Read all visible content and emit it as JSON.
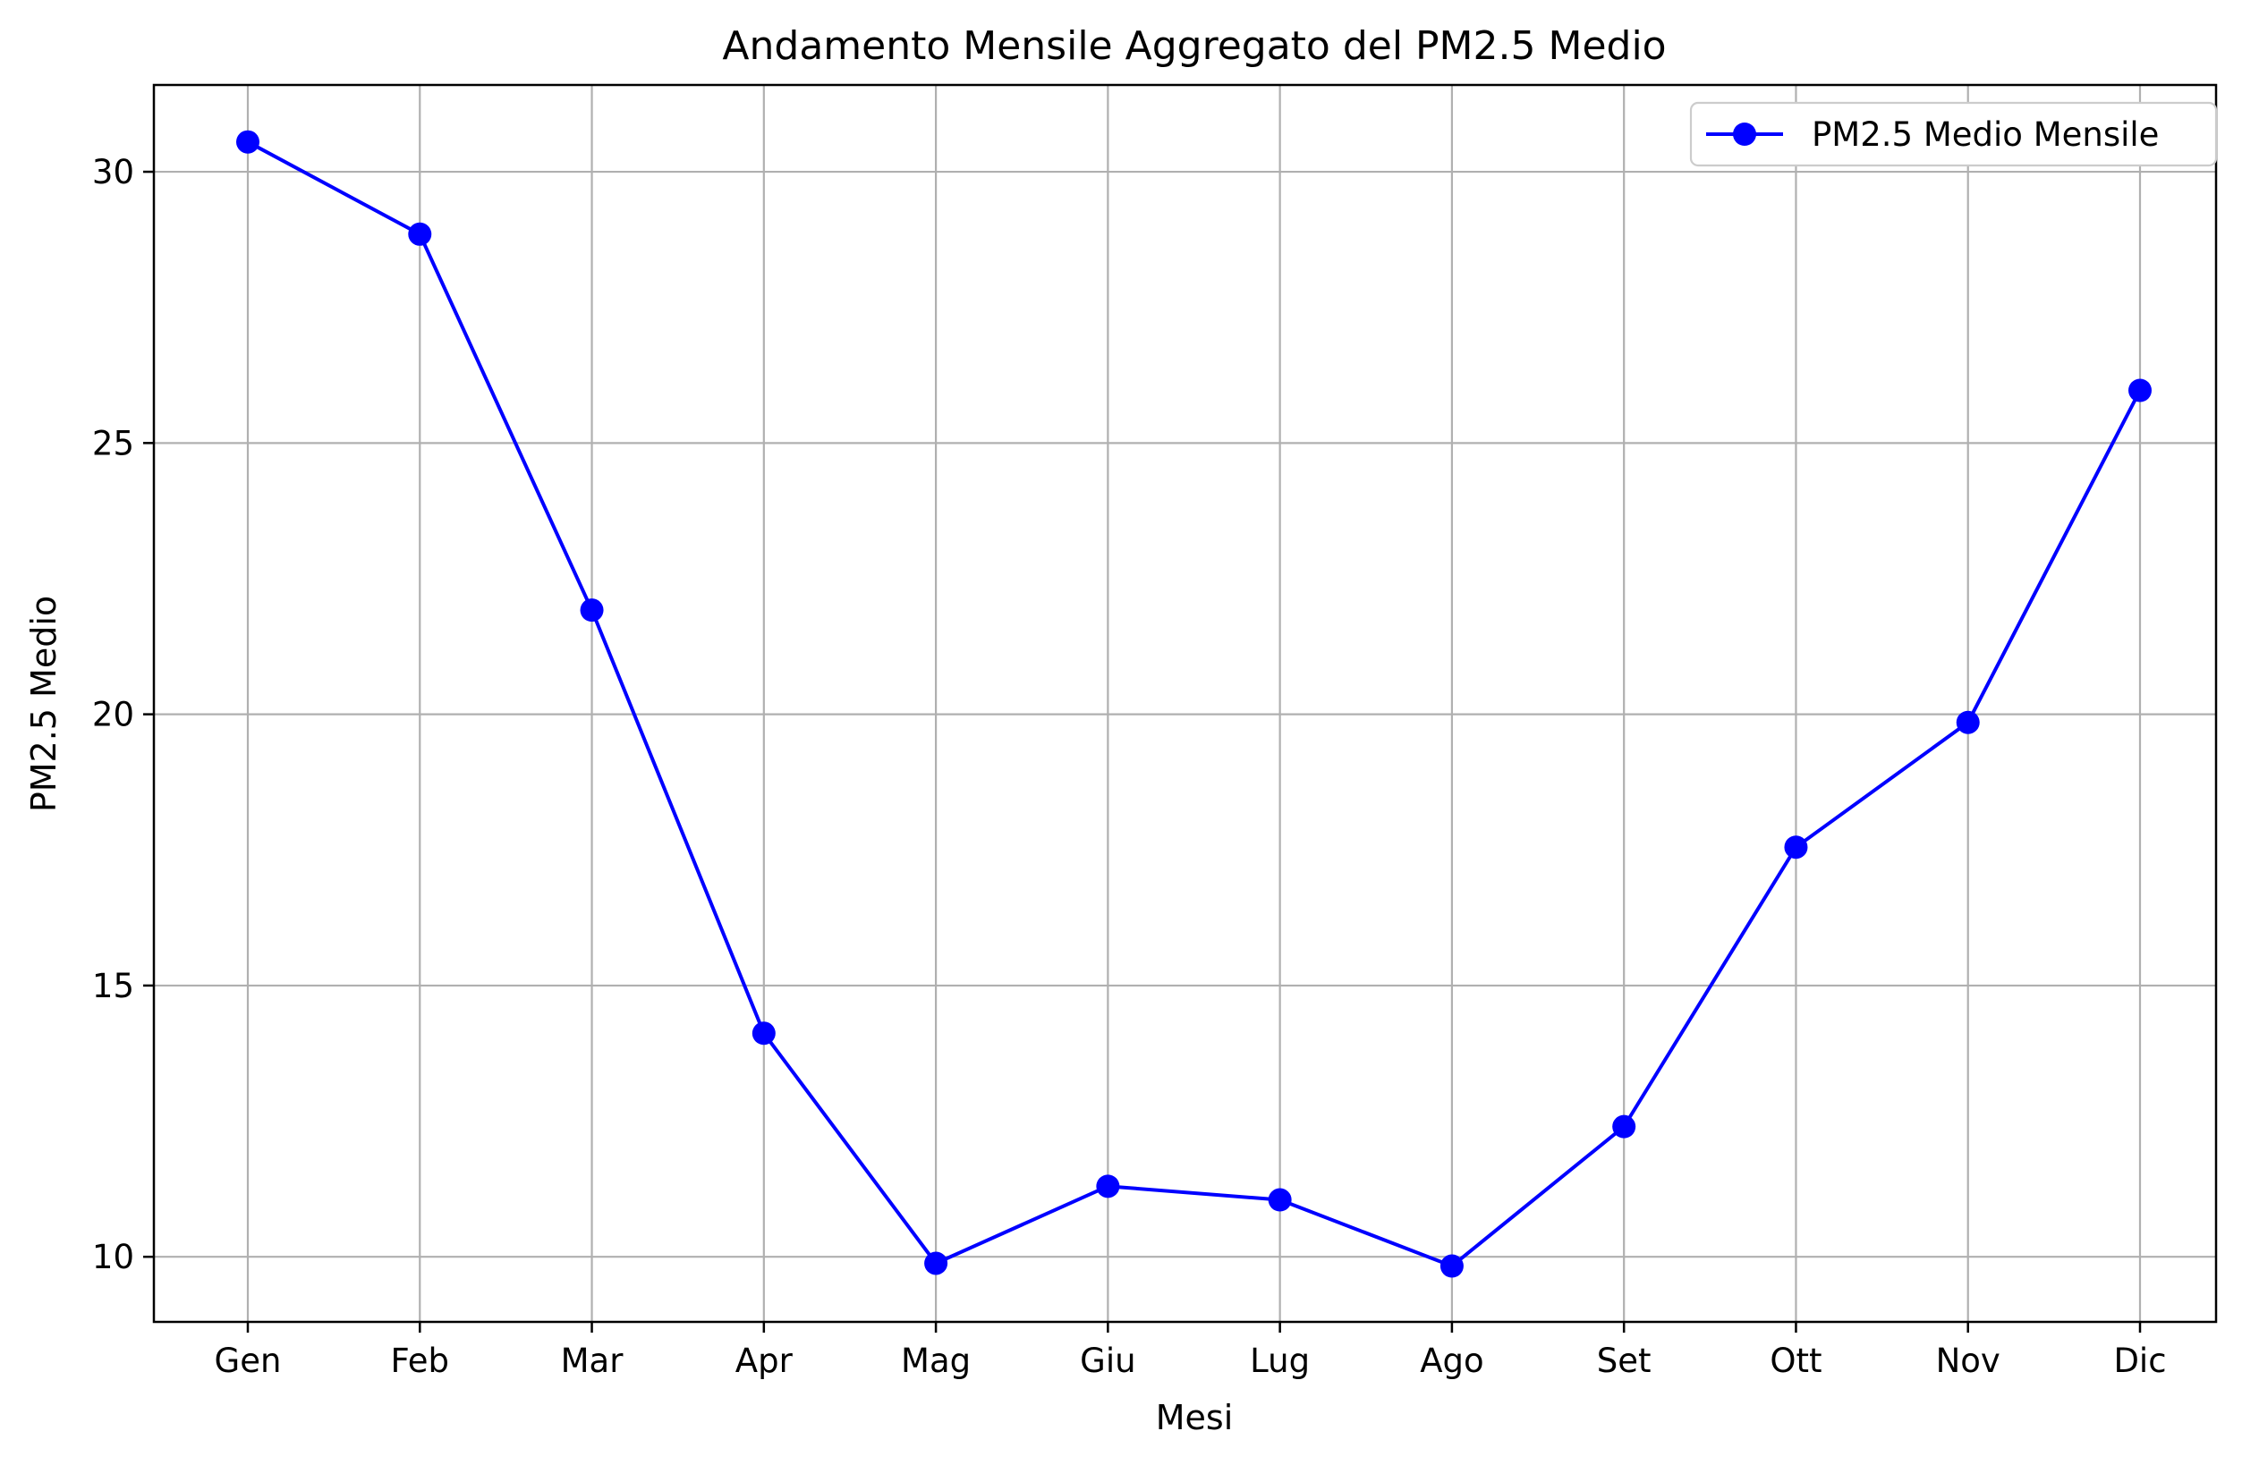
{
  "chart_data": {
    "type": "line",
    "title": "Andamento Mensile Aggregato del PM2.5 Medio",
    "xlabel": "Mesi",
    "ylabel": "PM2.5 Medio",
    "categories": [
      "Gen",
      "Feb",
      "Mar",
      "Apr",
      "Mag",
      "Giu",
      "Lug",
      "Ago",
      "Set",
      "Ott",
      "Nov",
      "Dic"
    ],
    "series": [
      {
        "name": "PM2.5 Medio Mensile",
        "color": "#0000ff",
        "marker": "circle",
        "values": [
          30.55,
          28.85,
          21.92,
          14.12,
          9.88,
          11.3,
          11.05,
          9.83,
          12.4,
          17.55,
          19.85,
          25.97
        ]
      }
    ],
    "ylim": [
      8.8,
      31.6
    ],
    "yticks": [
      10,
      15,
      20,
      25,
      30
    ],
    "grid": true,
    "legend_position": "top-right"
  }
}
